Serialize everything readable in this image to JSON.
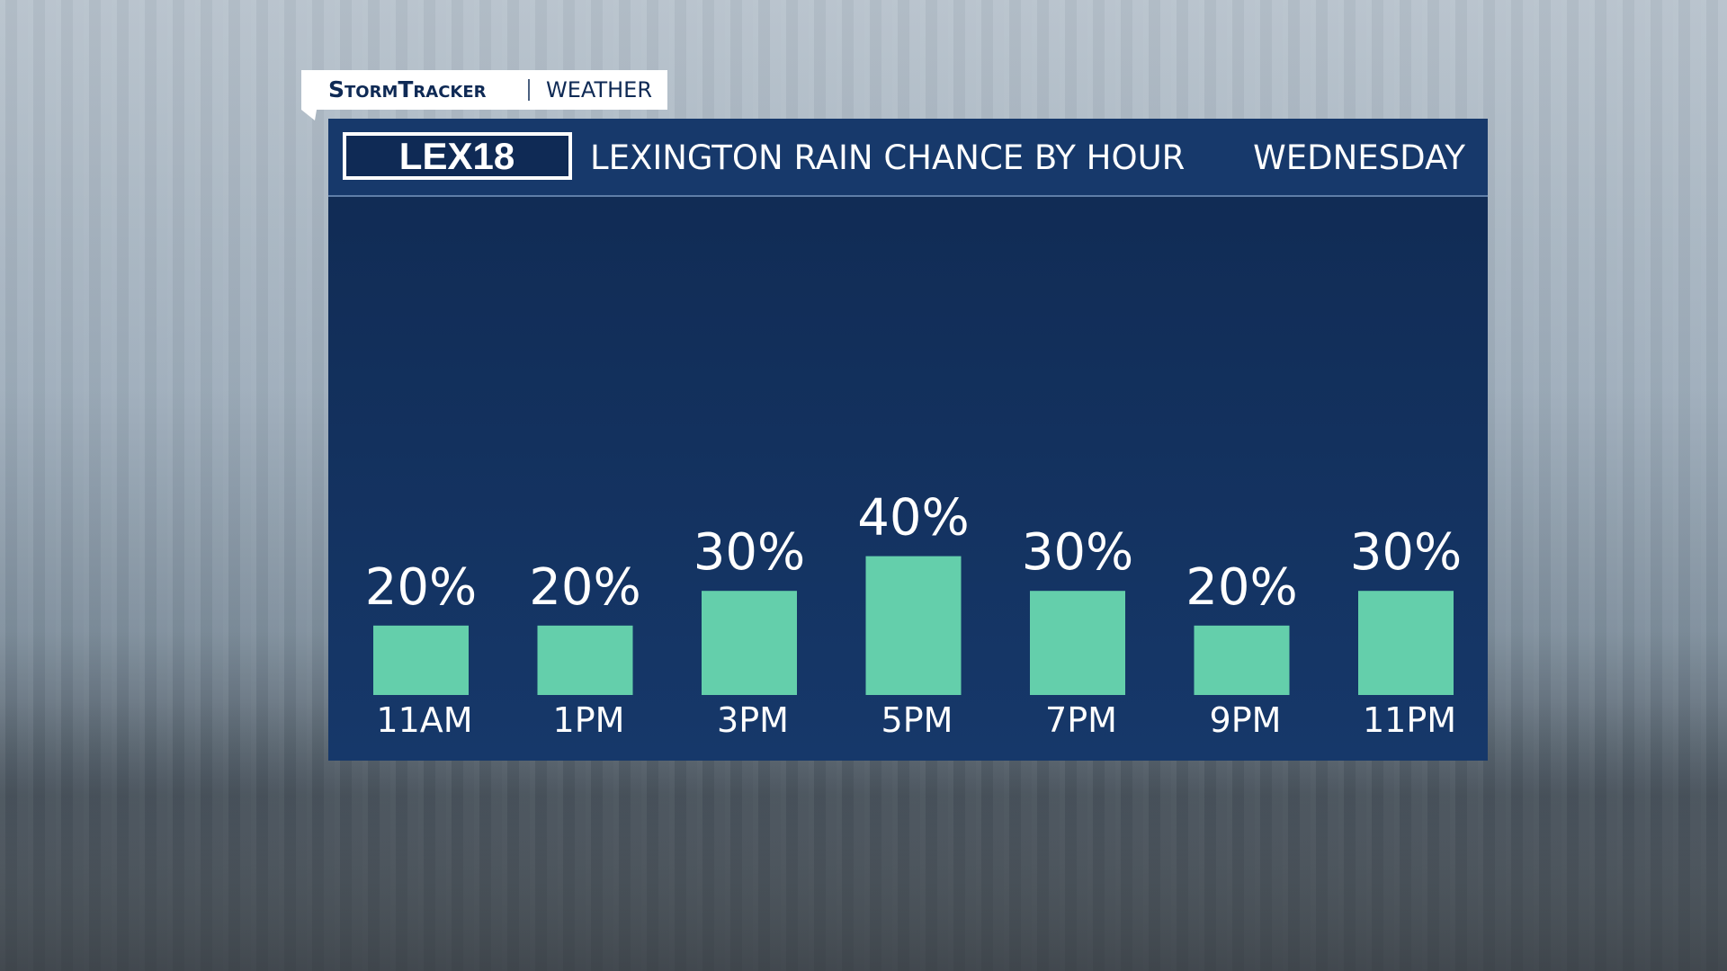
{
  "header": {
    "brand": "StormTracker",
    "section": "WEATHER",
    "logo": "LEX18"
  },
  "chart_data": {
    "type": "bar",
    "title": "LEXINGTON RAIN CHANCE BY HOUR",
    "subtitle": "WEDNESDAY",
    "categories": [
      "11AM",
      "1PM",
      "3PM",
      "5PM",
      "7PM",
      "9PM",
      "11PM"
    ],
    "values": [
      20,
      20,
      30,
      40,
      30,
      20,
      30
    ],
    "value_labels": [
      "20%",
      "20%",
      "30%",
      "40%",
      "30%",
      "20%",
      "30%"
    ],
    "color": "#64cfab"
  }
}
